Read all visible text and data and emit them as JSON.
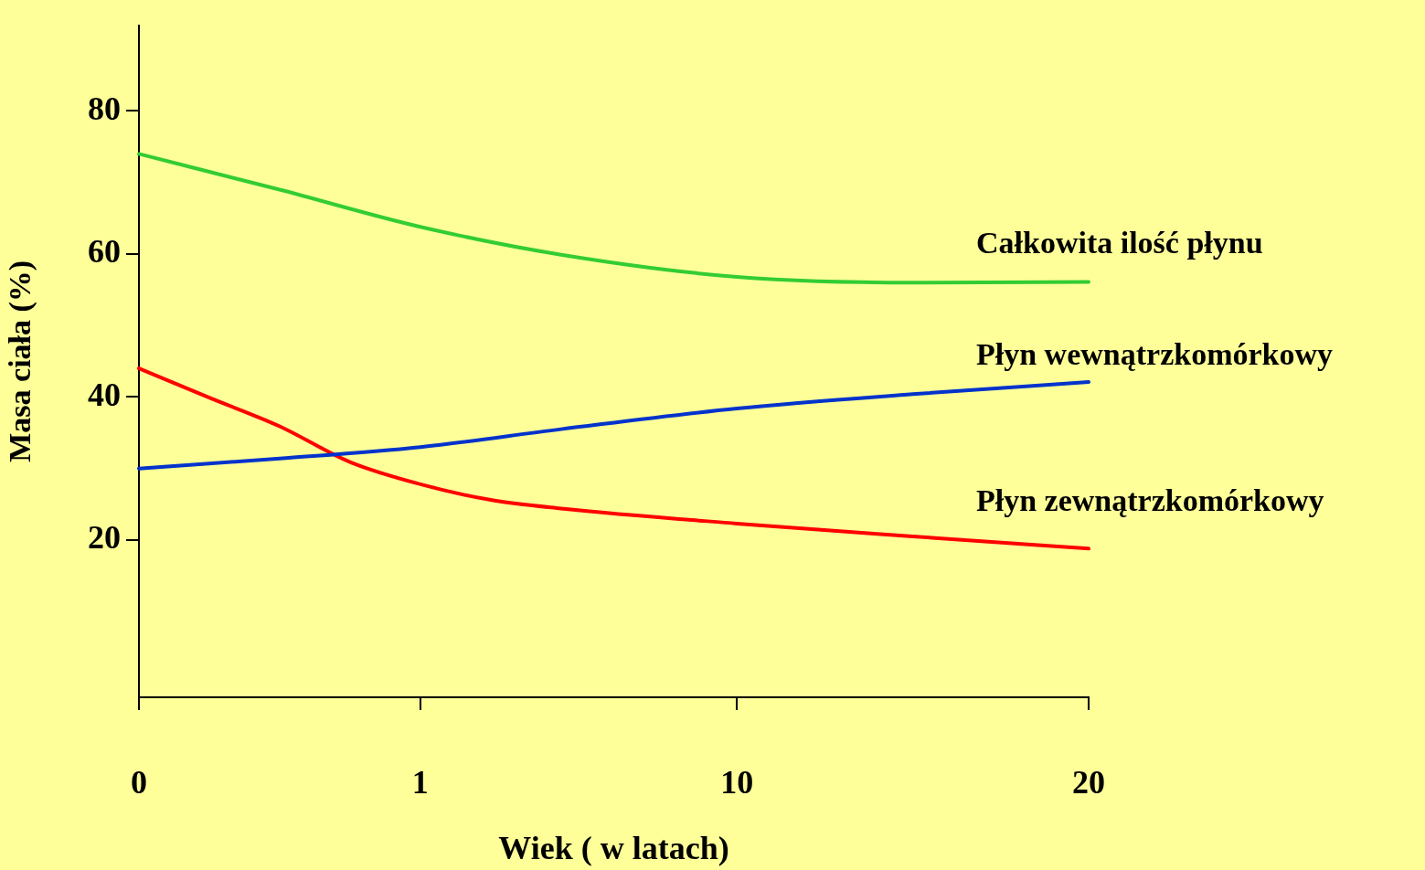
{
  "chart_data": {
    "type": "line",
    "xlabel": "Wiek ( w latach)",
    "ylabel": "Masa ciała (%)",
    "categories": [
      "0",
      null,
      null,
      null,
      null,
      null,
      null,
      null,
      "1",
      null,
      null,
      null,
      null,
      null,
      null,
      null,
      null,
      "10",
      null,
      null,
      null,
      null,
      null,
      null,
      null,
      null,
      null,
      "20"
    ],
    "ylim": [
      -2,
      92
    ],
    "yticks": [
      20,
      40,
      60,
      80
    ],
    "grid": false,
    "legend": false,
    "marker": "none",
    "line_style": "solid",
    "series": [
      {
        "name": "Całkowita ilość płynu",
        "color": "#33cc33",
        "values": [
          74,
          null,
          null,
          null,
          69,
          null,
          null,
          null,
          63.8,
          null,
          null,
          null,
          59.9,
          null,
          null,
          null,
          null,
          56.8,
          null,
          null,
          null,
          null,
          56,
          null,
          null,
          null,
          null,
          56.1
        ]
      },
      {
        "name": "Płyn wewnątrzkomórkowy",
        "color": "#0033cc",
        "values": [
          30,
          null,
          null,
          null,
          31.4,
          null,
          null,
          null,
          33,
          null,
          null,
          null,
          35.5,
          null,
          null,
          null,
          null,
          38.4,
          null,
          null,
          null,
          null,
          40.4,
          null,
          null,
          null,
          null,
          42.1
        ]
      },
      {
        "name": "Płyn zewnątrzkomórkowy",
        "color": "#ff0000",
        "values": [
          44,
          null,
          39.9,
          null,
          35.9,
          null,
          30.9,
          null,
          27.8,
          null,
          25.6,
          null,
          24.4,
          null,
          null,
          null,
          null,
          22.3,
          null,
          null,
          null,
          null,
          20.5,
          null,
          null,
          null,
          null,
          18.8
        ]
      }
    ]
  }
}
